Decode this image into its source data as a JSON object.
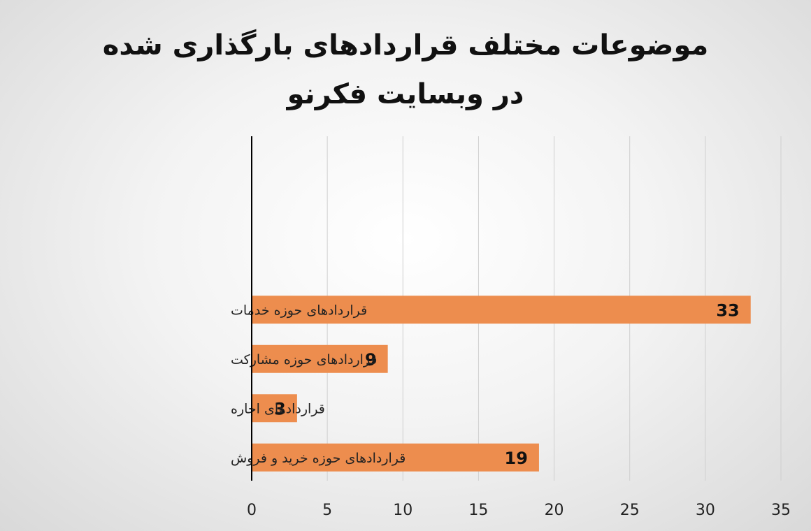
{
  "chart_data": {
    "type": "bar",
    "orientation": "horizontal",
    "title": "موضوعات مختلف قراردادهای بارگذاری شده در وبسایت فکرنو",
    "categories": [
      "قراردادهای حوزه خدمات",
      "قراردادهای حوزه مشارکت",
      "قراردادهای اجاره",
      "قراردادهای حوزه خرید و فروش"
    ],
    "values": [
      33,
      9,
      3,
      19
    ],
    "data_labels": [
      "33",
      "9",
      "3",
      "19"
    ],
    "xlim": [
      0,
      35
    ],
    "x_ticks": [
      0,
      5,
      10,
      15,
      20,
      25,
      30,
      35
    ],
    "x_tick_labels": [
      "0",
      "5",
      "10",
      "15",
      "20",
      "25",
      "30",
      "35"
    ],
    "grid": "vertical",
    "legend": "none",
    "bar_color": "#ED8D4E",
    "grid_color": "#cfcfcf",
    "axis_color": "#000000"
  }
}
